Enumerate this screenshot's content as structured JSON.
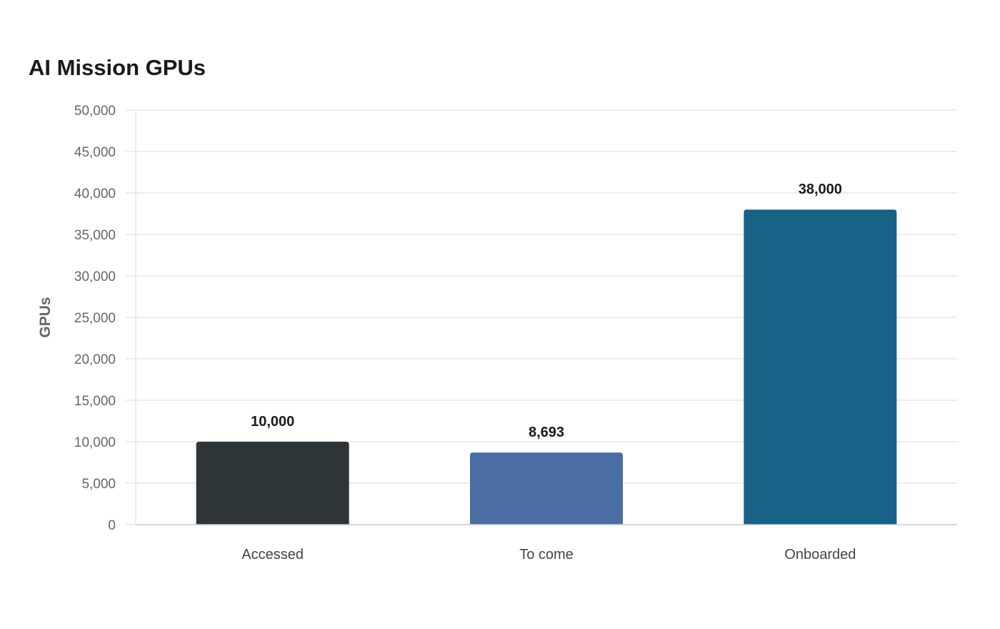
{
  "chart_data": {
    "type": "bar",
    "title": "AI Mission GPUs",
    "xlabel": "",
    "ylabel": "GPUs",
    "categories": [
      "Accessed",
      "To come",
      "Onboarded"
    ],
    "values": [
      10000,
      8693,
      38000
    ],
    "value_labels": [
      "10,000",
      "8,693",
      "38,000"
    ],
    "colors": [
      "#2e3538",
      "#4a6da3",
      "#186187"
    ],
    "ylim": [
      0,
      50000
    ],
    "yticks": [
      0,
      5000,
      10000,
      15000,
      20000,
      25000,
      30000,
      35000,
      40000,
      45000,
      50000
    ],
    "ytick_labels": [
      "0",
      "5,000",
      "10,000",
      "15,000",
      "20,000",
      "25,000",
      "30,000",
      "35,000",
      "40,000",
      "45,000",
      "50,000"
    ],
    "grid": true,
    "legend": "none"
  }
}
